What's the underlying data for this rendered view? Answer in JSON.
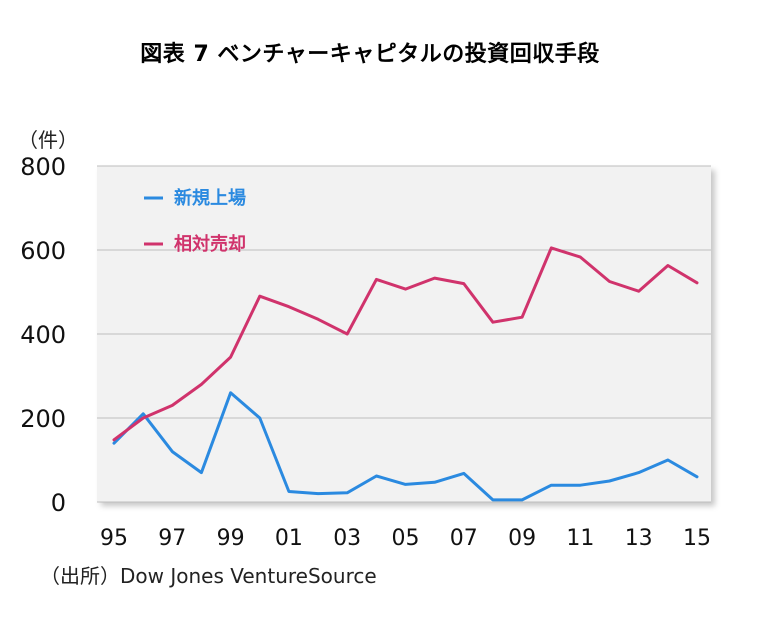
{
  "title": "図表 7 ベンチャーキャピタルの投資回収手段",
  "unit_label": "（件）",
  "source": "（出所）Dow Jones VentureSource",
  "chart_data": {
    "type": "line",
    "title": "図表 7 ベンチャーキャピタルの投資回収手段",
    "ylabel": "（件）",
    "ylim": [
      0,
      800
    ],
    "yticks": [
      "0",
      "200",
      "400",
      "600",
      "800"
    ],
    "x": [
      "95",
      "96",
      "97",
      "98",
      "99",
      "00",
      "01",
      "02",
      "03",
      "04",
      "05",
      "06",
      "07",
      "08",
      "09",
      "10",
      "11",
      "12",
      "13",
      "14",
      "15"
    ],
    "xtick_labels": [
      "95",
      "97",
      "99",
      "01",
      "03",
      "05",
      "07",
      "09",
      "11",
      "13",
      "15"
    ],
    "legend_position": "top-left",
    "grid": "horizontal",
    "series": [
      {
        "name": "新規上場",
        "color": "#2b8ae0",
        "values": [
          140,
          210,
          120,
          70,
          260,
          200,
          25,
          20,
          22,
          62,
          42,
          47,
          68,
          5,
          5,
          40,
          40,
          50,
          70,
          100,
          60
        ]
      },
      {
        "name": "相対売却",
        "color": "#d0336c",
        "values": [
          148,
          200,
          230,
          280,
          345,
          490,
          465,
          435,
          400,
          530,
          507,
          533,
          520,
          428,
          440,
          605,
          583,
          525,
          502,
          563,
          522
        ]
      }
    ]
  }
}
